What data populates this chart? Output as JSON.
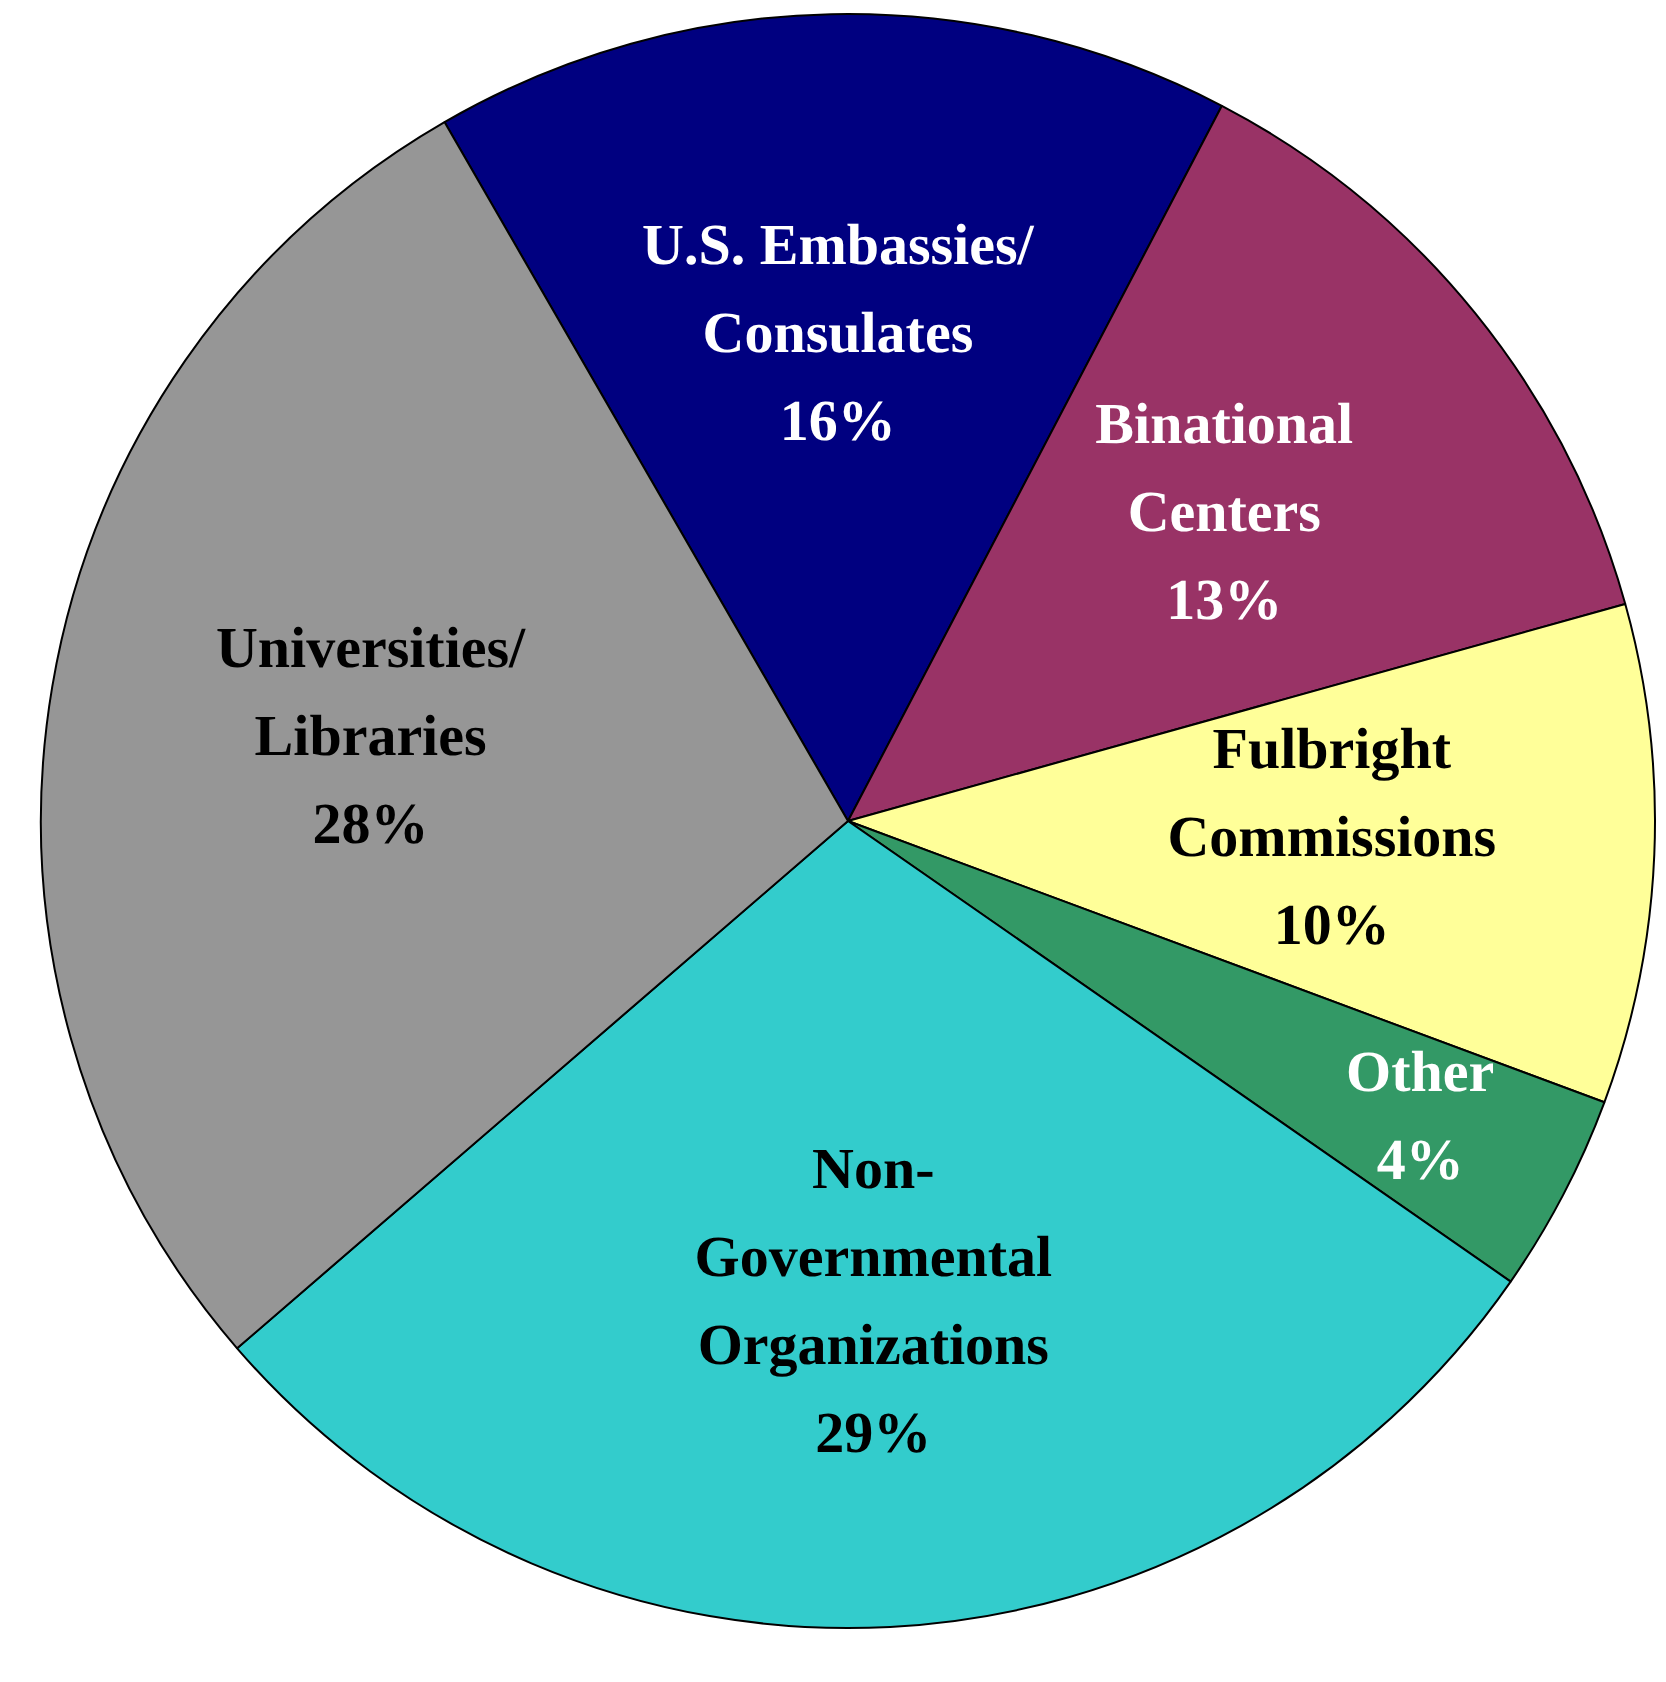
{
  "chart_data": {
    "type": "pie",
    "categories": [
      "U.S. Embassies/\nConsulates",
      "Binational\nCenters",
      "Fulbright\nCommissions",
      "Other",
      "Non-\nGovernmental\nOrganizations",
      "Universities/\nLibraries"
    ],
    "values": [
      16,
      13,
      10,
      4,
      29,
      28
    ],
    "colors": [
      "#000080",
      "#993366",
      "#ffff99",
      "#339966",
      "#33cccc",
      "#969696"
    ],
    "value_labels": [
      "16%",
      "13%",
      "10%",
      "4%",
      "29%",
      "28%"
    ],
    "legend": false
  }
}
